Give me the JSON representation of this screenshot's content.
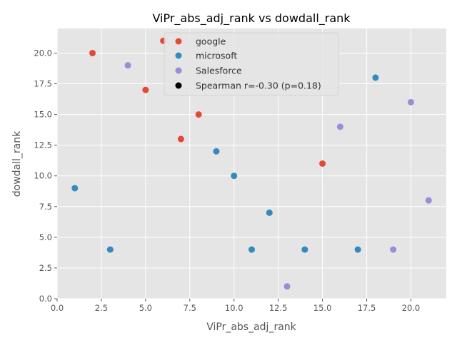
{
  "chart_data": {
    "type": "scatter",
    "title": "ViPr_abs_adj_rank vs dowdall_rank",
    "xlabel": "ViPr_abs_adj_rank",
    "ylabel": "dowdall_rank",
    "xlim": [
      0,
      22
    ],
    "ylim": [
      0,
      22
    ],
    "xticks": [
      0.0,
      2.5,
      5.0,
      7.5,
      10.0,
      12.5,
      15.0,
      17.5,
      20.0
    ],
    "xtick_labels": [
      "0.0",
      "2.5",
      "5.0",
      "7.5",
      "10.0",
      "12.5",
      "15.0",
      "17.5",
      "20.0"
    ],
    "yticks": [
      0.0,
      2.5,
      5.0,
      7.5,
      10.0,
      12.5,
      15.0,
      17.5,
      20.0
    ],
    "ytick_labels": [
      "0.0",
      "2.5",
      "5.0",
      "7.5",
      "10.0",
      "12.5",
      "15.0",
      "17.5",
      "20.0"
    ],
    "grid": true,
    "legend_position": "top-center",
    "style": {
      "plot_bg": "#e5e5e5",
      "grid_color": "#ffffff",
      "text_color": "#555555",
      "title_color": "#000000"
    },
    "series": [
      {
        "name": "google",
        "color": "#e24a33",
        "points": [
          {
            "x": 2,
            "y": 20
          },
          {
            "x": 5,
            "y": 17
          },
          {
            "x": 6,
            "y": 21
          },
          {
            "x": 7,
            "y": 13
          },
          {
            "x": 8,
            "y": 15
          },
          {
            "x": 15,
            "y": 11
          }
        ]
      },
      {
        "name": "microsoft",
        "color": "#348abd",
        "points": [
          {
            "x": 1,
            "y": 9
          },
          {
            "x": 3,
            "y": 4
          },
          {
            "x": 9,
            "y": 12
          },
          {
            "x": 10,
            "y": 10
          },
          {
            "x": 11,
            "y": 4
          },
          {
            "x": 12,
            "y": 7
          },
          {
            "x": 14,
            "y": 4
          },
          {
            "x": 17,
            "y": 4
          },
          {
            "x": 18,
            "y": 18
          }
        ]
      },
      {
        "name": "Salesforce",
        "color": "#988ed5",
        "points": [
          {
            "x": 4,
            "y": 19
          },
          {
            "x": 13,
            "y": 1
          },
          {
            "x": 16,
            "y": 14
          },
          {
            "x": 19,
            "y": 4
          },
          {
            "x": 20,
            "y": 16
          },
          {
            "x": 21,
            "y": 8
          }
        ]
      }
    ],
    "legend_extra": {
      "name": "Spearman r=-0.30 (p=0.18)",
      "color": "#000000"
    }
  }
}
